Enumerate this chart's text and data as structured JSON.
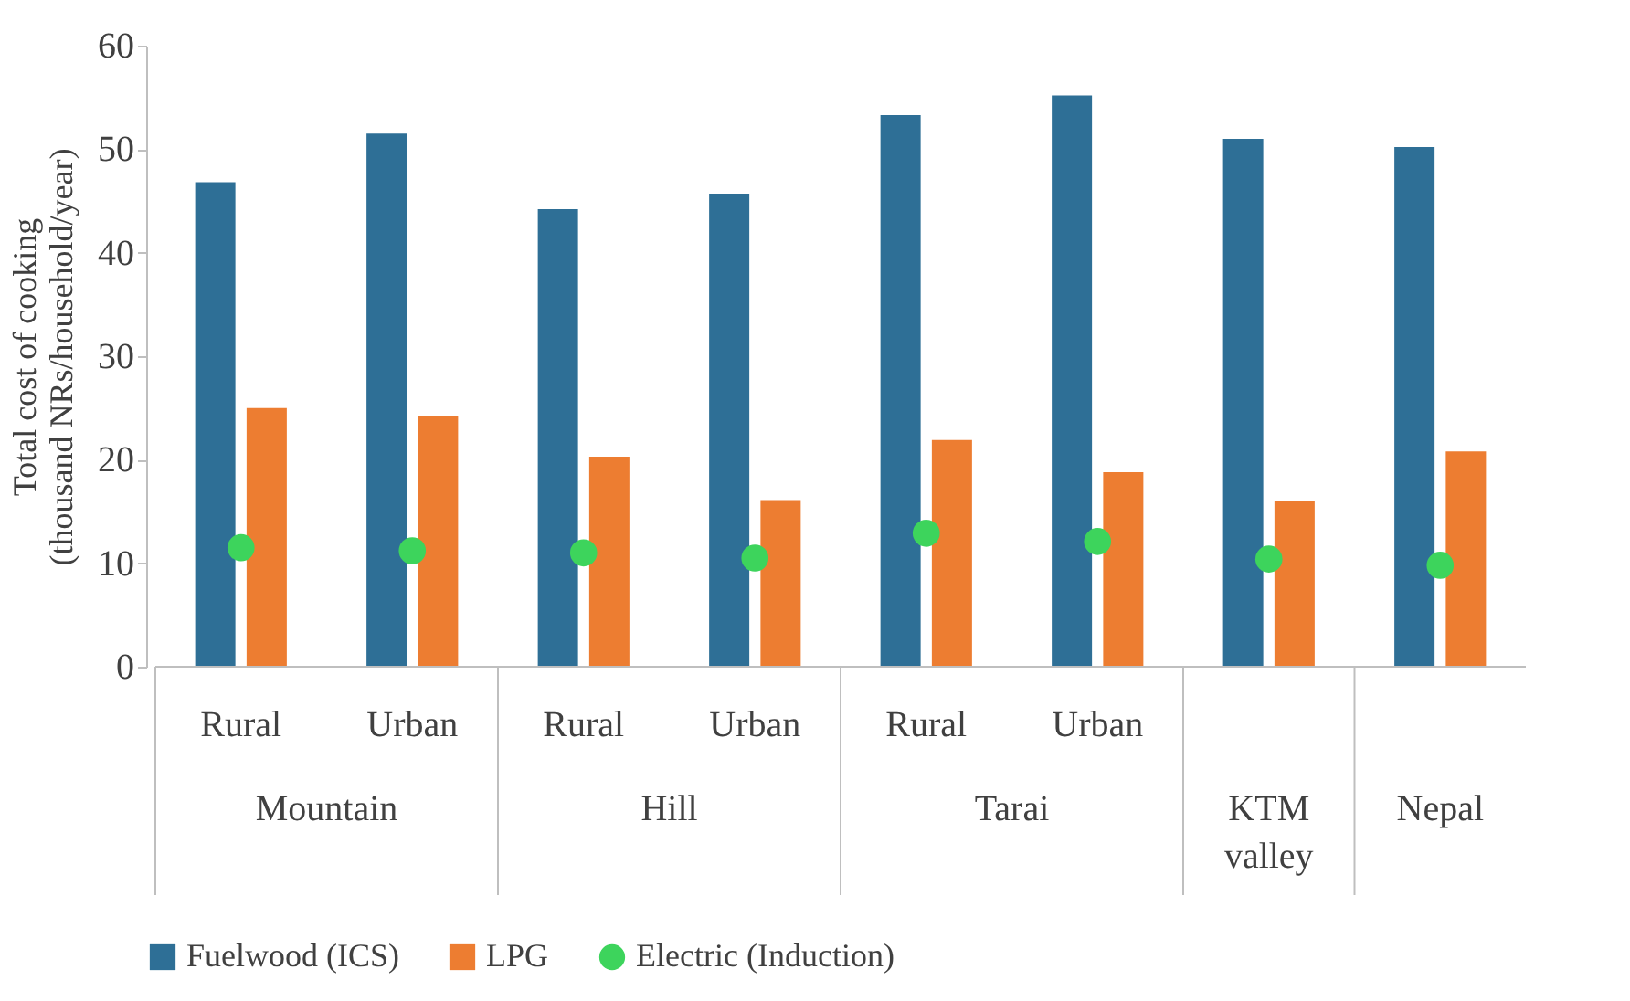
{
  "chart_data": {
    "type": "bar",
    "ylabel": "Total cost of cooking\n(thousand NRs/household/year)",
    "categories": [
      "Rural",
      "Urban",
      "Rural",
      "Urban",
      "Rural",
      "Urban",
      null,
      null
    ],
    "series": [
      {
        "name": "Fuelwood (ICS)",
        "color": "#2e6f96",
        "values": [
          46.8,
          51.5,
          44.2,
          45.7,
          53.3,
          55.2,
          51.0,
          50.2
        ]
      },
      {
        "name": "LPG",
        "color": "#ed7d31",
        "values": [
          25.0,
          24.2,
          20.3,
          16.1,
          21.9,
          18.8,
          16.0,
          20.8
        ]
      },
      {
        "name": "Electric (Induction)",
        "type": "scatter",
        "color": "#3dd45c",
        "values": [
          11.5,
          11.2,
          11.0,
          10.5,
          12.9,
          12.1,
          10.4,
          9.8
        ]
      }
    ],
    "annotations": [
      "Mountain",
      "Hill",
      "Tarai",
      "KTM\nvalley",
      "Nepal"
    ],
    "ylim": [
      0,
      60
    ],
    "yticks": [
      0,
      10,
      20,
      30,
      40,
      50,
      60
    ],
    "grid": false,
    "legend": "bottom",
    "marker": "circle"
  }
}
